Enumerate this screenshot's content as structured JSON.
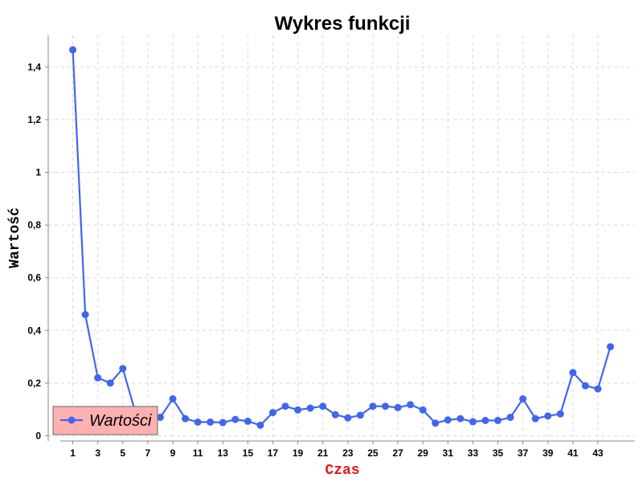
{
  "chart_data": {
    "type": "line",
    "title": "Wykres funkcji",
    "xlabel": "Czas",
    "ylabel": "Wartość",
    "xlim": [
      0,
      45
    ],
    "ylim": [
      -0.02,
      1.52
    ],
    "xticks": [
      1,
      3,
      5,
      7,
      9,
      11,
      13,
      15,
      17,
      19,
      21,
      23,
      25,
      27,
      29,
      31,
      33,
      35,
      37,
      39,
      41,
      43
    ],
    "yticks": [
      0,
      0.2,
      0.4,
      0.6,
      0.8,
      1.0,
      1.2,
      1.4
    ],
    "ytick_labels": [
      "0",
      "0,2",
      "0,4",
      "0,6",
      "0,8",
      "1",
      "1,2",
      "1,4"
    ],
    "grid": true,
    "legend": "bottom-left",
    "colors": {
      "series": "#3f66f0",
      "xlabel": "#e8141c",
      "legend_bg": "#ffb0b0"
    },
    "series": [
      {
        "name": "Wartości",
        "x": [
          1,
          2,
          3,
          4,
          5,
          6,
          7,
          8,
          9,
          10,
          11,
          12,
          13,
          14,
          15,
          16,
          17,
          18,
          19,
          20,
          21,
          22,
          23,
          24,
          25,
          26,
          27,
          28,
          29,
          30,
          31,
          32,
          33,
          34,
          35,
          36,
          37,
          38,
          39,
          40,
          41,
          42,
          43,
          44
        ],
        "values": [
          1.465,
          0.46,
          0.22,
          0.2,
          0.255,
          0.09,
          0.06,
          0.07,
          0.14,
          0.065,
          0.052,
          0.052,
          0.05,
          0.062,
          0.055,
          0.04,
          0.088,
          0.112,
          0.098,
          0.105,
          0.112,
          0.08,
          0.068,
          0.078,
          0.112,
          0.112,
          0.107,
          0.118,
          0.098,
          0.048,
          0.06,
          0.065,
          0.053,
          0.058,
          0.058,
          0.07,
          0.14,
          0.065,
          0.075,
          0.083,
          0.24,
          0.19,
          0.178,
          0.338
        ]
      }
    ]
  }
}
